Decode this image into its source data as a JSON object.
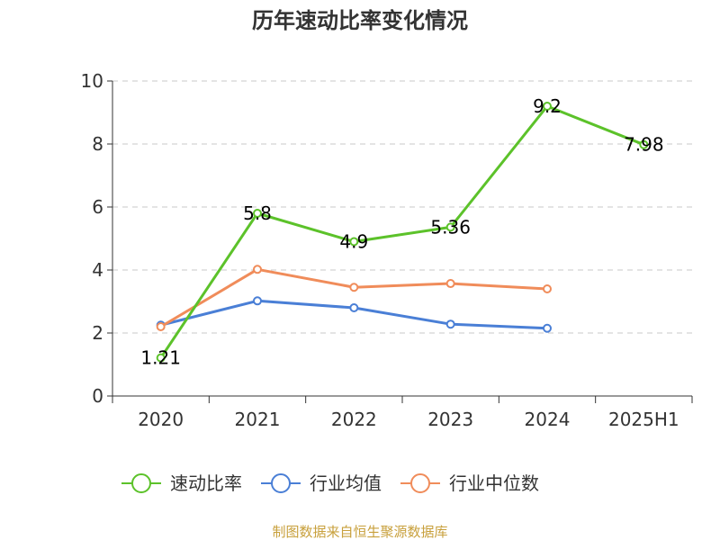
{
  "chart_data": {
    "type": "line",
    "title": "历年速动比率变化情况",
    "categories": [
      "2020",
      "2021",
      "2022",
      "2023",
      "2024",
      "2025H1"
    ],
    "ylim": [
      0,
      10
    ],
    "yticks": [
      0,
      2,
      4,
      6,
      8,
      10
    ],
    "grid": true,
    "legend_position": "bottom",
    "series": [
      {
        "name": "速动比率",
        "color": "#5cc22a",
        "values": [
          1.21,
          5.8,
          4.9,
          5.36,
          9.2,
          7.98
        ],
        "labels": [
          "1.21",
          "5.8",
          "4.9",
          "5.36",
          "9.2",
          "7.98"
        ]
      },
      {
        "name": "行业均值",
        "color": "#4a7fd6",
        "values": [
          2.25,
          3.02,
          2.8,
          2.28,
          2.15,
          null
        ]
      },
      {
        "name": "行业中位数",
        "color": "#f08c5a",
        "values": [
          2.2,
          4.02,
          3.45,
          3.57,
          3.4,
          null
        ]
      }
    ],
    "source": "制图数据来自恒生聚源数据库"
  }
}
